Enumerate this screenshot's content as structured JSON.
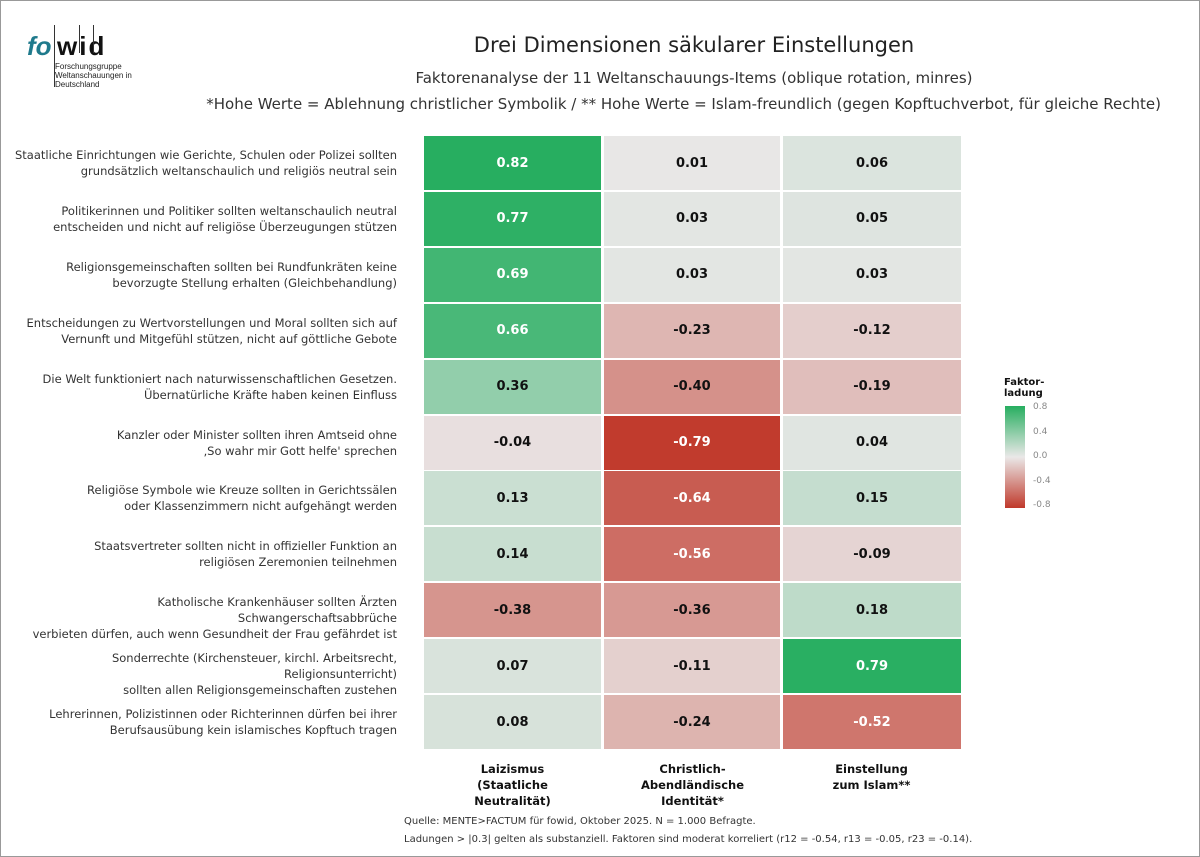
{
  "logo": {
    "brand_fo": "fo",
    "brand_wid": "wid",
    "tagline": "Forschungsgruppe Weltanschauungen in Deutschland"
  },
  "chart_data": {
    "type": "heatmap",
    "title": "Drei Dimensionen säkularer Einstellungen",
    "subtitle": "Faktorenanalyse der 11 Weltanschauungs-Items (oblique rotation, minres)",
    "subtitle2": "*Hohe Werte = Ablehnung christlicher Symbolik / ** Hohe Werte = Islam-freundlich (gegen Kopftuchverbot, für gleiche Rechte)",
    "columns": [
      "Laizismus\n(Staatliche\nNeutralität)",
      "Christlich-\nAbendländische\nIdentität*",
      "Einstellung\nzum Islam**"
    ],
    "rows": [
      "Staatliche Einrichtungen wie Gerichte, Schulen oder Polizei sollten\ngrundsätzlich weltanschaulich und religiös neutral sein",
      "Politikerinnen und Politiker sollten weltanschaulich neutral\nentscheiden und nicht auf religiöse Überzeugungen stützen",
      "Religionsgemeinschaften sollten bei Rundfunkräten keine\nbevorzugte Stellung erhalten (Gleichbehandlung)",
      "Entscheidungen zu Wertvorstellungen und Moral sollten sich auf\nVernunft und Mitgefühl stützen, nicht auf göttliche Gebote",
      "Die Welt funktioniert nach naturwissenschaftlichen Gesetzen.\nÜbernatürliche Kräfte haben keinen Einfluss",
      "Kanzler oder Minister sollten ihren Amtseid ohne\n‚So wahr mir Gott helfe' sprechen",
      "Religiöse Symbole wie Kreuze sollten in Gerichtssälen\noder Klassenzimmern nicht aufgehängt werden",
      "Staatsvertreter sollten nicht in offizieller Funktion an\nreligiösen Zeremonien teilnehmen",
      "Katholische Krankenhäuser sollten Ärzten Schwangerschaftsabbrüche\nverbieten dürfen, auch wenn Gesundheit der Frau gefährdet ist",
      "Sonderrechte (Kirchensteuer, kirchl. Arbeitsrecht, Religionsunterricht)\nsollten allen Religionsgemeinschaften zustehen",
      "Lehrerinnen, Polizistinnen oder Richterinnen dürfen bei ihrer\nBerufsausübung kein islamisches Kopftuch tragen"
    ],
    "values": [
      [
        0.82,
        0.01,
        0.06
      ],
      [
        0.77,
        0.03,
        0.05
      ],
      [
        0.69,
        0.03,
        0.03
      ],
      [
        0.66,
        -0.23,
        -0.12
      ],
      [
        0.36,
        -0.4,
        -0.19
      ],
      [
        -0.04,
        -0.79,
        0.04
      ],
      [
        0.13,
        -0.64,
        0.15
      ],
      [
        0.14,
        -0.56,
        -0.09
      ],
      [
        -0.38,
        -0.36,
        0.18
      ],
      [
        0.07,
        -0.11,
        0.79
      ],
      [
        0.08,
        -0.24,
        -0.52
      ]
    ],
    "legend": {
      "title": "Faktor-\nladung",
      "ticks": [
        "0.8",
        "0.4",
        "0.0",
        "-0.4",
        "-0.8"
      ],
      "range": [
        -0.8,
        0.8
      ],
      "placement": "right"
    },
    "colors": {
      "high": "#27ae60",
      "mid": "#eae8e8",
      "low": "#c0392b"
    }
  },
  "footer": {
    "source": "Quelle: MENTE>FACTUM für fowid, Oktober 2025. N = 1.000 Befragte.",
    "note": "Ladungen > |0.3| gelten als substanziell. Faktoren sind moderat korreliert (r12 = -0.54, r13 = -0.05, r23 = -0.14)."
  }
}
